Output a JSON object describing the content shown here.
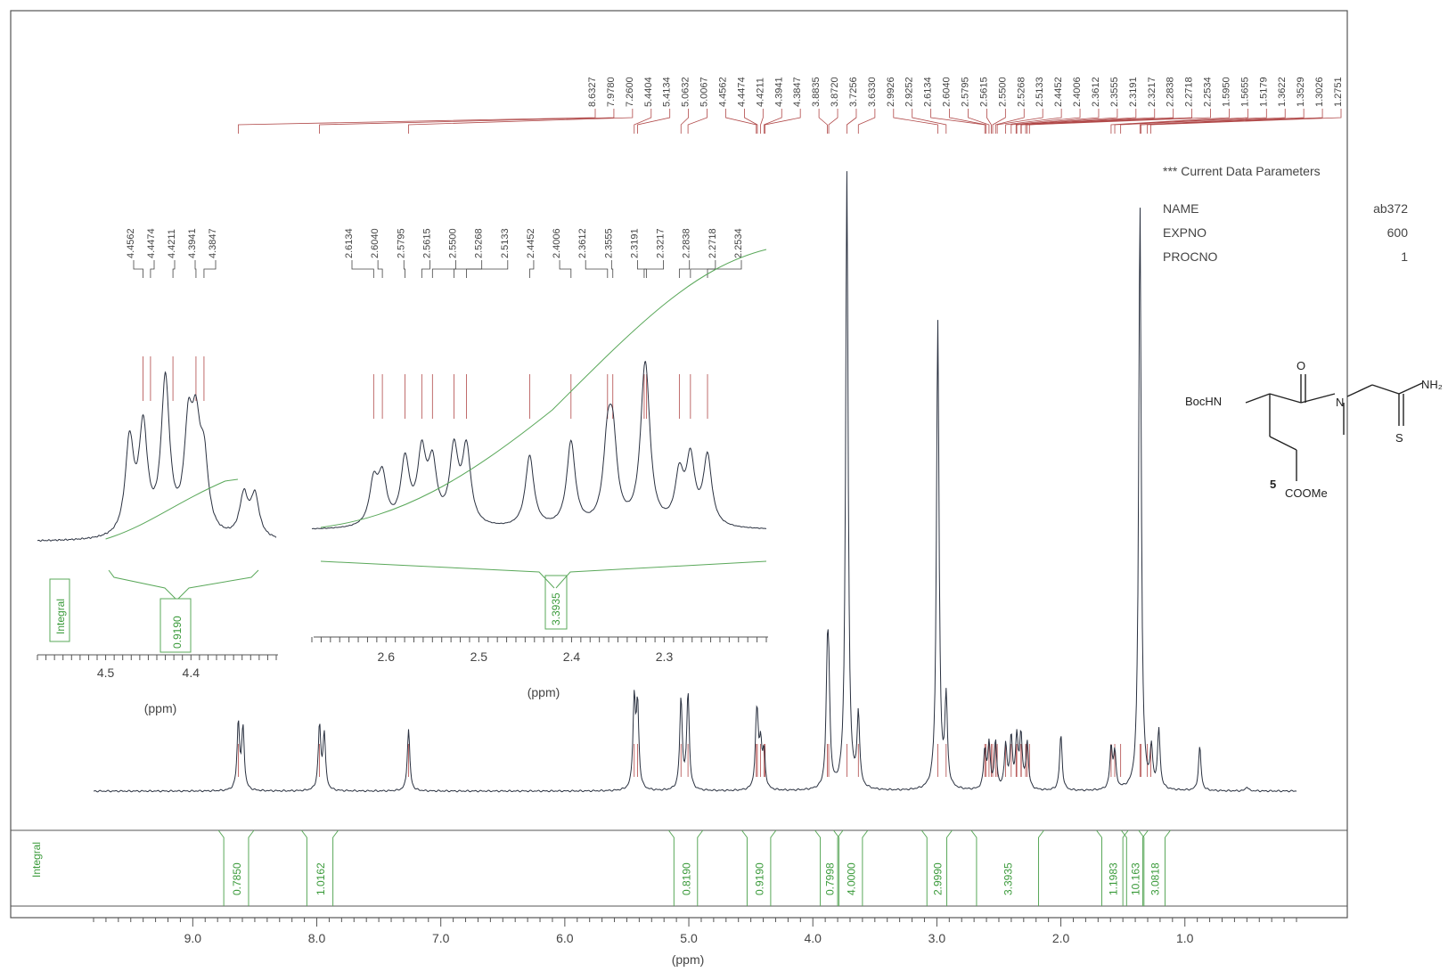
{
  "chart_data": [
    {
      "type": "line",
      "name_hint": "main",
      "xlabel": "(ppm)",
      "xlim": [
        9.8,
        0.1
      ],
      "x_ticks": [
        "9.0",
        "8.0",
        "7.0",
        "6.0",
        "5.0",
        "4.0",
        "3.0",
        "2.0",
        "1.0"
      ],
      "peak_labels": [
        "8.6327",
        "7.9780",
        "7.2600",
        "5.4404",
        "5.4134",
        "5.0632",
        "5.0067",
        "4.4562",
        "4.4474",
        "4.4211",
        "4.3941",
        "4.3847",
        "3.8835",
        "3.8720",
        "3.7256",
        "3.6330",
        "2.9926",
        "2.9252",
        "2.6134",
        "2.6040",
        "2.5795",
        "2.5615",
        "2.5500",
        "2.5268",
        "2.5133",
        "2.4452",
        "2.4006",
        "2.3612",
        "2.3555",
        "2.3191",
        "2.3217",
        "2.2838",
        "2.2718",
        "2.2534",
        "1.5950",
        "1.5655",
        "1.5179",
        "1.3622",
        "1.3529",
        "1.3026",
        "1.2751"
      ],
      "peaks": [
        {
          "x": 8.6327,
          "h": 0.46
        },
        {
          "x": 8.595,
          "h": 0.42
        },
        {
          "x": 7.978,
          "h": 0.44
        },
        {
          "x": 7.94,
          "h": 0.38
        },
        {
          "x": 7.26,
          "h": 0.42
        },
        {
          "x": 5.4404,
          "h": 0.6
        },
        {
          "x": 5.4134,
          "h": 0.56
        },
        {
          "x": 5.0632,
          "h": 0.62
        },
        {
          "x": 5.0067,
          "h": 0.66
        },
        {
          "x": 4.4562,
          "h": 0.26
        },
        {
          "x": 4.4474,
          "h": 0.34
        },
        {
          "x": 4.4211,
          "h": 0.28
        },
        {
          "x": 4.3941,
          "h": 0.24
        },
        {
          "x": 3.8835,
          "h": 0.7
        },
        {
          "x": 3.872,
          "h": 0.62
        },
        {
          "x": 3.7256,
          "h": 4.2
        },
        {
          "x": 3.633,
          "h": 0.5
        },
        {
          "x": 2.9926,
          "h": 3.2
        },
        {
          "x": 2.9252,
          "h": 0.6
        },
        {
          "x": 2.6134,
          "h": 0.26
        },
        {
          "x": 2.5795,
          "h": 0.3
        },
        {
          "x": 2.5268,
          "h": 0.32
        },
        {
          "x": 2.4452,
          "h": 0.3
        },
        {
          "x": 2.4006,
          "h": 0.34
        },
        {
          "x": 2.3555,
          "h": 0.34
        },
        {
          "x": 2.3217,
          "h": 0.36
        },
        {
          "x": 2.2718,
          "h": 0.32
        },
        {
          "x": 2.0,
          "h": 0.38
        },
        {
          "x": 1.595,
          "h": 0.28
        },
        {
          "x": 1.5655,
          "h": 0.24
        },
        {
          "x": 1.3622,
          "h": 4.0
        },
        {
          "x": 1.27,
          "h": 0.26
        },
        {
          "x": 1.21,
          "h": 0.4
        },
        {
          "x": 0.88,
          "h": 0.3
        },
        {
          "x": 0.5,
          "h": 0.03
        }
      ],
      "integrals": [
        {
          "from": 8.75,
          "to": 8.55,
          "value": "0.7850"
        },
        {
          "from": 8.08,
          "to": 7.87,
          "value": "1.0162"
        },
        {
          "from": 5.12,
          "to": 4.93,
          "value": "0.8190"
        },
        {
          "from": 4.53,
          "to": 4.34,
          "value": "0.9190"
        },
        {
          "from": 3.94,
          "to": 3.8,
          "value": "0.7998"
        },
        {
          "from": 3.79,
          "to": 3.6,
          "value": "4.0000"
        },
        {
          "from": 3.08,
          "to": 2.92,
          "value": "2.9990"
        },
        {
          "from": 2.68,
          "to": 2.18,
          "value": "3.3935"
        },
        {
          "from": 1.67,
          "to": 1.5,
          "value": "1.1983"
        },
        {
          "from": 1.47,
          "to": 1.34,
          "value": "10.163"
        },
        {
          "from": 1.33,
          "to": 1.16,
          "value": "3.0818"
        }
      ],
      "integral_axis_label": "Integral"
    },
    {
      "type": "line",
      "name_hint": "inset-left",
      "xlabel": "(ppm)",
      "xlim": [
        4.58,
        4.3
      ],
      "x_ticks": [
        "4.5",
        "4.4"
      ],
      "peak_labels": [
        "4.4562",
        "4.4474",
        "4.4211",
        "4.3941",
        "4.3847"
      ],
      "peaks": [
        {
          "x": 4.472,
          "h": 0.5
        },
        {
          "x": 4.456,
          "h": 0.56
        },
        {
          "x": 4.43,
          "h": 0.82
        },
        {
          "x": 4.403,
          "h": 0.52
        },
        {
          "x": 4.3941,
          "h": 0.48
        },
        {
          "x": 4.3847,
          "h": 0.36
        },
        {
          "x": 4.338,
          "h": 0.22
        },
        {
          "x": 4.325,
          "h": 0.22
        }
      ],
      "integral": {
        "value": "0.9190"
      },
      "integral_axis_label": "Integral"
    },
    {
      "type": "line",
      "name_hint": "inset-right",
      "xlabel": "(ppm)",
      "xlim": [
        2.68,
        2.19
      ],
      "x_ticks": [
        "2.6",
        "2.5",
        "2.4",
        "2.3"
      ],
      "peak_labels": [
        "2.6134",
        "2.6040",
        "2.5795",
        "2.5615",
        "2.5500",
        "2.5268",
        "2.5133",
        "2.4452",
        "2.4006",
        "2.3612",
        "2.3555",
        "2.3191",
        "2.3217",
        "2.2838",
        "2.2718",
        "2.2534"
      ],
      "peaks": [
        {
          "x": 2.6134,
          "h": 0.38
        },
        {
          "x": 2.604,
          "h": 0.42
        },
        {
          "x": 2.5795,
          "h": 0.58
        },
        {
          "x": 2.5615,
          "h": 0.62
        },
        {
          "x": 2.55,
          "h": 0.52
        },
        {
          "x": 2.5268,
          "h": 0.66
        },
        {
          "x": 2.5133,
          "h": 0.68
        },
        {
          "x": 2.4452,
          "h": 0.64
        },
        {
          "x": 2.4006,
          "h": 0.76
        },
        {
          "x": 2.3612,
          "h": 0.66
        },
        {
          "x": 2.3555,
          "h": 0.7
        },
        {
          "x": 2.3217,
          "h": 0.84
        },
        {
          "x": 2.3191,
          "h": 0.7
        },
        {
          "x": 2.2718,
          "h": 0.58
        },
        {
          "x": 2.2534,
          "h": 0.62
        },
        {
          "x": 2.2838,
          "h": 0.44
        }
      ],
      "integral": {
        "value": "3.3935"
      }
    }
  ],
  "parameters": {
    "title": "*** Current Data Parameters",
    "rows": [
      {
        "key": "NAME",
        "value": "ab372"
      },
      {
        "key": "EXPNO",
        "value": "600"
      },
      {
        "key": "PROCNO",
        "value": "1"
      }
    ]
  },
  "structure": {
    "left_group": "BocHN",
    "carbonyl_o": "O",
    "n_label": "N",
    "amide_group": "NH₂",
    "thione_s": "S",
    "position_label": "5",
    "ester_group": "COOMe"
  },
  "colors": {
    "spectrum": "#2a3140",
    "peak_marks": "#b04848",
    "integral": "#5aa85a",
    "frame": "#555555"
  }
}
